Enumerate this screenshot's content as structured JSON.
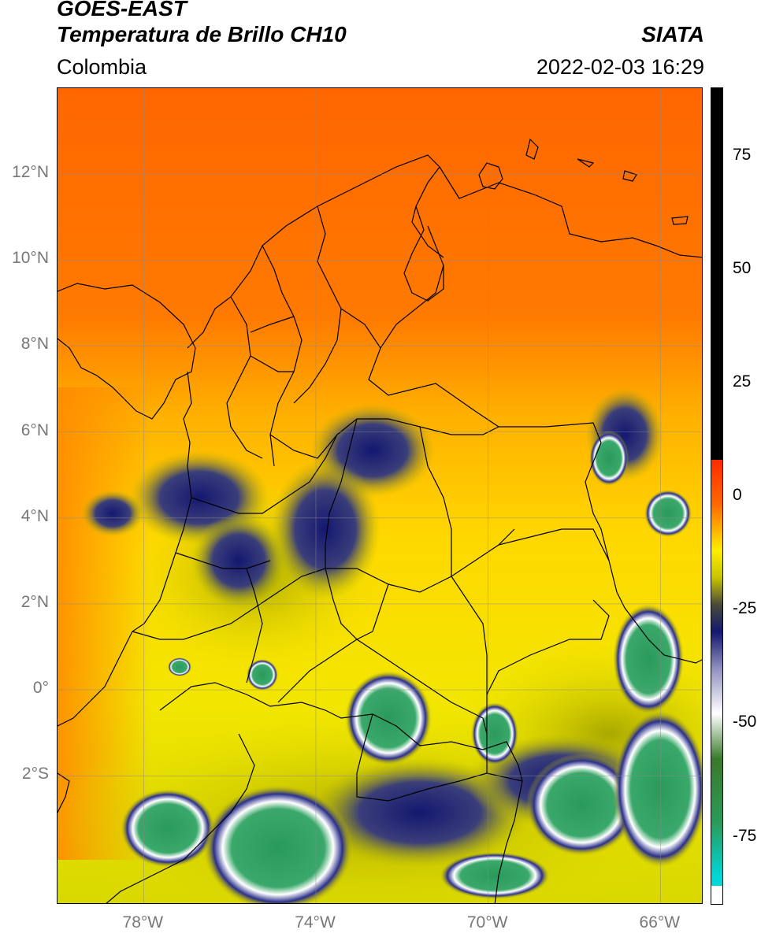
{
  "header": {
    "title_line1": "GOES-EAST",
    "title_line2": "Temperatura de Brillo CH10",
    "region": "Colombia",
    "source": "SIATA",
    "datetime": "2022-02-03 16:29"
  },
  "map": {
    "lat_labels": [
      "12°N",
      "10°N",
      "8°N",
      "6°N",
      "4°N",
      "2°N",
      "0°",
      "2°S"
    ],
    "lon_labels": [
      "78°W",
      "74°W",
      "70°W",
      "66°W"
    ],
    "extent": {
      "lon_min": -80.0,
      "lon_max": -65.0,
      "lat_min": -5.0,
      "lat_max": 14.0
    },
    "gridlines": true
  },
  "colorbar": {
    "labels": [
      "75",
      "50",
      "25",
      "0",
      "-25",
      "-50",
      "-75"
    ],
    "range": [
      -90,
      90
    ],
    "colors": {
      "orange": "#ff6a00",
      "yellow": "#ffee00",
      "olive": "#c8c400",
      "navy": "#141870",
      "white": "#ffffff",
      "green": "#2a9a5a",
      "cyan": "#00d8d8",
      "red": "#ff2a00",
      "black": "#000000"
    }
  }
}
